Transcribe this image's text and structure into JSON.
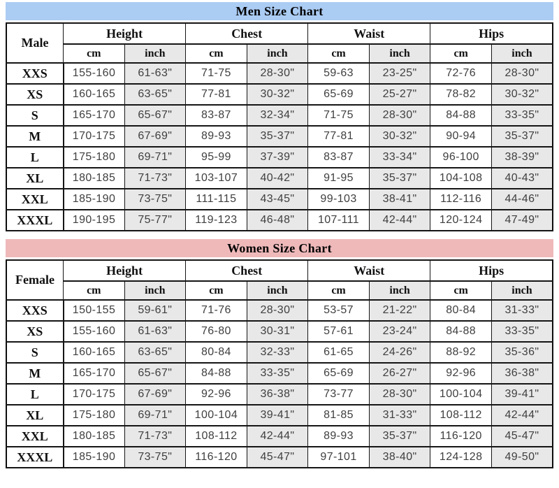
{
  "colors": {
    "men_title_bg": "#abccf3",
    "women_title_bg": "#efb9ba",
    "inch_cell_bg": "#e8e8e8",
    "border": "#151515",
    "data_text": "#3f3f3f"
  },
  "chart_data": [
    {
      "type": "table",
      "title": "Men Size Chart",
      "label_header": "Male",
      "groups": [
        "Height",
        "Chest",
        "Waist",
        "Hips"
      ],
      "units": [
        "cm",
        "inch"
      ],
      "rows": [
        {
          "size": "XXS",
          "values": [
            "155-160",
            "61-63\"",
            "71-75",
            "28-30\"",
            "59-63",
            "23-25\"",
            "72-76",
            "28-30\""
          ]
        },
        {
          "size": "XS",
          "values": [
            "160-165",
            "63-65\"",
            "77-81",
            "30-32\"",
            "65-69",
            "25-27\"",
            "78-82",
            "30-32\""
          ]
        },
        {
          "size": "S",
          "values": [
            "165-170",
            "65-67\"",
            "83-87",
            "32-34\"",
            "71-75",
            "28-30\"",
            "84-88",
            "33-35\""
          ]
        },
        {
          "size": "M",
          "values": [
            "170-175",
            "67-69\"",
            "89-93",
            "35-37\"",
            "77-81",
            "30-32\"",
            "90-94",
            "35-37\""
          ]
        },
        {
          "size": "L",
          "values": [
            "175-180",
            "69-71\"",
            "95-99",
            "37-39\"",
            "83-87",
            "33-34\"",
            "96-100",
            "38-39\""
          ]
        },
        {
          "size": "XL",
          "values": [
            "180-185",
            "71-73\"",
            "103-107",
            "40-42\"",
            "91-95",
            "35-37\"",
            "104-108",
            "40-43\""
          ]
        },
        {
          "size": "XXL",
          "values": [
            "185-190",
            "73-75\"",
            "111-115",
            "43-45\"",
            "99-103",
            "38-41\"",
            "112-116",
            "44-46\""
          ]
        },
        {
          "size": "XXXL",
          "values": [
            "190-195",
            "75-77\"",
            "119-123",
            "46-48\"",
            "107-111",
            "42-44\"",
            "120-124",
            "47-49\""
          ]
        }
      ]
    },
    {
      "type": "table",
      "title": "Women Size Chart",
      "label_header": "Female",
      "groups": [
        "Height",
        "Chest",
        "Waist",
        "Hips"
      ],
      "units": [
        "cm",
        "inch"
      ],
      "rows": [
        {
          "size": "XXS",
          "values": [
            "150-155",
            "59-61\"",
            "71-76",
            "28-30\"",
            "53-57",
            "21-22\"",
            "80-84",
            "31-33\""
          ]
        },
        {
          "size": "XS",
          "values": [
            "155-160",
            "61-63\"",
            "76-80",
            "30-31\"",
            "57-61",
            "23-24\"",
            "84-88",
            "33-35\""
          ]
        },
        {
          "size": "S",
          "values": [
            "160-165",
            "63-65\"",
            "80-84",
            "32-33\"",
            "61-65",
            "24-26\"",
            "88-92",
            "35-36\""
          ]
        },
        {
          "size": "M",
          "values": [
            "165-170",
            "65-67\"",
            "84-88",
            "33-35\"",
            "65-69",
            "26-27\"",
            "92-96",
            "36-38\""
          ]
        },
        {
          "size": "L",
          "values": [
            "170-175",
            "67-69\"",
            "92-96",
            "36-38\"",
            "73-77",
            "28-30\"",
            "100-104",
            "39-41\""
          ]
        },
        {
          "size": "XL",
          "values": [
            "175-180",
            "69-71\"",
            "100-104",
            "39-41\"",
            "81-85",
            "31-33\"",
            "108-112",
            "42-44\""
          ]
        },
        {
          "size": "XXL",
          "values": [
            "180-185",
            "71-73\"",
            "108-112",
            "42-44\"",
            "89-93",
            "35-37\"",
            "116-120",
            "45-47\""
          ]
        },
        {
          "size": "XXXL",
          "values": [
            "185-190",
            "73-75\"",
            "116-120",
            "45-47\"",
            "97-101",
            "38-40\"",
            "124-128",
            "49-50\""
          ]
        }
      ]
    }
  ]
}
